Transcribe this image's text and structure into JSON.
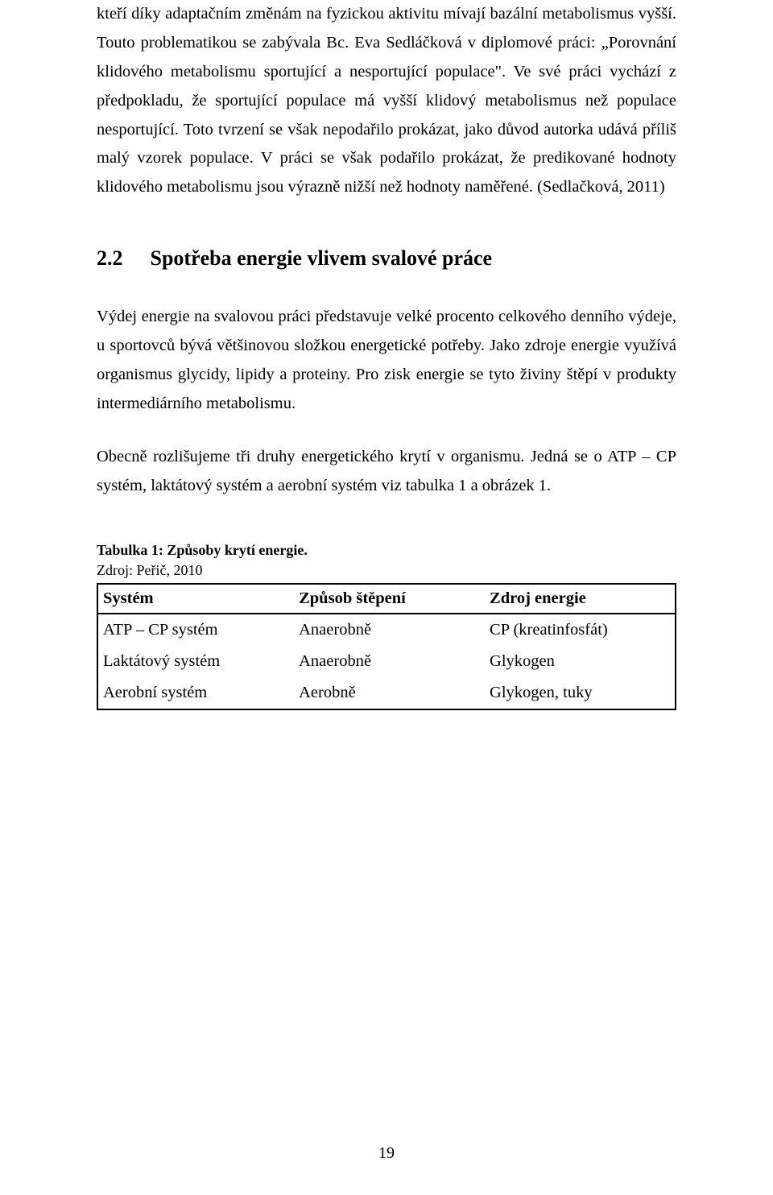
{
  "paragraphs": {
    "p1": "kteří díky adaptačním změnám na fyzickou aktivitu mívají bazální metabolismus vyšší. Touto problematikou se zabývala Bc. Eva Sedláčková v diplomové práci: „Porovnání klidového metabolismu sportující a nesportující populace\". Ve své práci vychází z předpokladu, že sportující populace má vyšší klidový metabolismus než populace nesportující. Toto tvrzení se však nepodařilo prokázat, jako důvod autorka udává příliš malý vzorek populace. V práci se však podařilo prokázat, že predikované hodnoty klidového metabolismu jsou výrazně nižší než hodnoty naměřené. (Sedlačková, 2011)",
    "p2": "Výdej energie na svalovou práci představuje velké procento celkového denního výdeje, u sportovců bývá většinovou složkou energetické potřeby. Jako zdroje energie využívá organismus glycidy, lipidy a proteiny. Pro zisk energie se tyto živiny štěpí v produkty intermediárního metabolismu.",
    "p3": "Obecně rozlišujeme tři druhy energetického krytí v organismu. Jedná se o ATP – CP systém, laktátový systém a aerobní systém viz tabulka 1 a obrázek 1."
  },
  "section": {
    "number": "2.2",
    "title": "Spotřeba energie vlivem svalové práce"
  },
  "table": {
    "caption": "Tabulka 1: Způsoby krytí energie.",
    "source": "Zdroj: Peřič, 2010",
    "columns": [
      "Systém",
      "Způsob štěpení",
      "Zdroj energie"
    ],
    "rows": [
      [
        "ATP – CP systém",
        "Anaerobně",
        "CP (kreatinfosfát)"
      ],
      [
        "Laktátový systém",
        "Anaerobně",
        "Glykogen"
      ],
      [
        "Aerobní systém",
        "Aerobně",
        "Glykogen, tuky"
      ]
    ]
  },
  "page_number": "19"
}
